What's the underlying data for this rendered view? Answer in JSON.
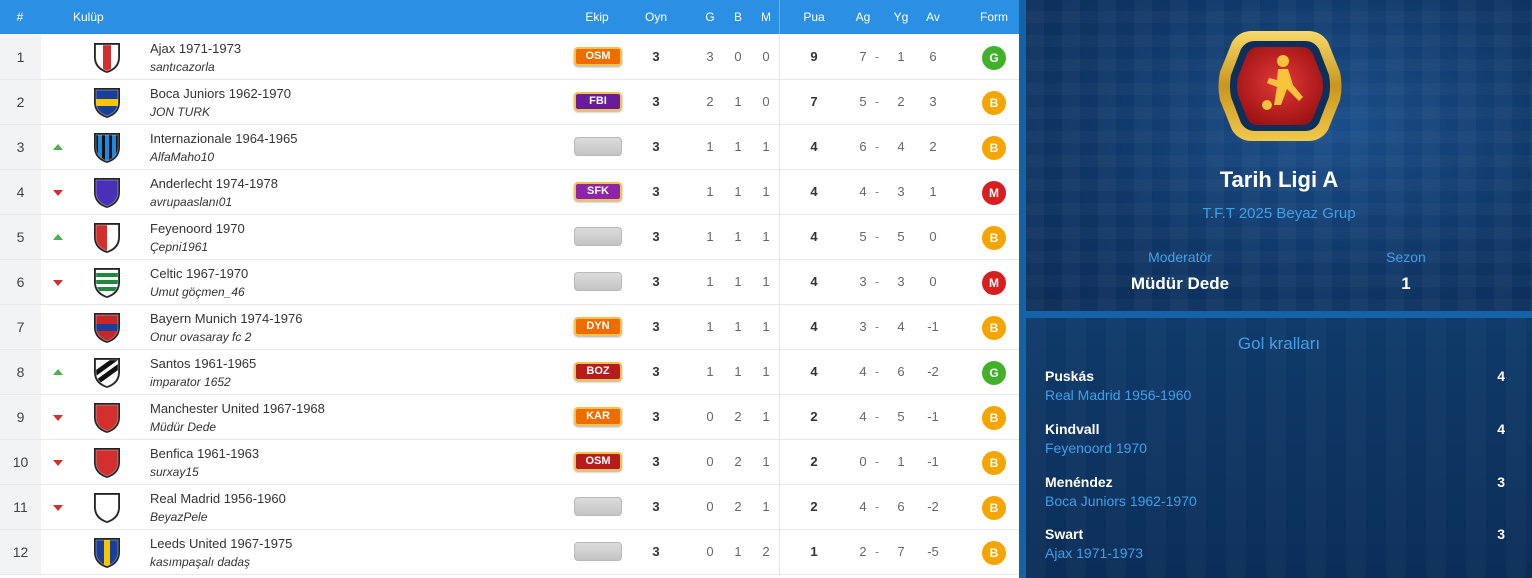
{
  "table": {
    "headers": {
      "rank": "#",
      "club": "Kulüp",
      "team": "Ekip",
      "played": "Oyn",
      "won": "G",
      "drawn": "B",
      "lost": "M",
      "points": "Pua",
      "goals_for": "Ag",
      "goals_against": "Yg",
      "goal_diff": "Av",
      "form": "Form"
    },
    "score_separator": "-",
    "rows": [
      {
        "rank": "1",
        "trend": "none",
        "crest": {
          "c1": "#d32f2f",
          "c2": "#ffffff",
          "style": "center"
        },
        "team": "Ajax 1971-1973",
        "manager": "santıcazorla",
        "ekip": {
          "label": "OSM",
          "color": "#ef6c00"
        },
        "played": "3",
        "won": "3",
        "drawn": "0",
        "lost": "0",
        "points": "9",
        "gf": "7",
        "ga": "1",
        "gd": "6",
        "form": {
          "label": "G",
          "color": "#43b02a"
        }
      },
      {
        "rank": "2",
        "trend": "none",
        "crest": {
          "c1": "#1a3f9a",
          "c2": "#f7c600",
          "style": "band"
        },
        "team": "Boca Juniors 1962-1970",
        "manager": "JON TURK",
        "ekip": {
          "label": "FBI",
          "color": "#6a1b9a"
        },
        "played": "3",
        "won": "2",
        "drawn": "1",
        "lost": "0",
        "points": "7",
        "gf": "5",
        "ga": "2",
        "gd": "3",
        "form": {
          "label": "B",
          "color": "#f5a400"
        }
      },
      {
        "rank": "3",
        "trend": "up",
        "crest": {
          "c1": "#1e88e5",
          "c2": "#111111",
          "style": "stripes"
        },
        "team": "Internazionale 1964-1965",
        "manager": "AlfaMaho10",
        "ekip": {
          "label": "",
          "color": ""
        },
        "played": "3",
        "won": "1",
        "drawn": "1",
        "lost": "1",
        "points": "4",
        "gf": "6",
        "ga": "4",
        "gd": "2",
        "form": {
          "label": "B",
          "color": "#f5a400"
        }
      },
      {
        "rank": "4",
        "trend": "down",
        "crest": {
          "c1": "#4a2fb8",
          "c2": "#4a2fb8",
          "style": "solid"
        },
        "team": "Anderlecht 1974-1978",
        "manager": "avrupaaslanı01",
        "ekip": {
          "label": "SFK",
          "color": "#8e24aa"
        },
        "played": "3",
        "won": "1",
        "drawn": "1",
        "lost": "1",
        "points": "4",
        "gf": "4",
        "ga": "3",
        "gd": "1",
        "form": {
          "label": "M",
          "color": "#d81e1e"
        }
      },
      {
        "rank": "5",
        "trend": "up",
        "crest": {
          "c1": "#d32f2f",
          "c2": "#ffffff",
          "style": "half"
        },
        "team": "Feyenoord 1970",
        "manager": "Çepni1961",
        "ekip": {
          "label": "",
          "color": ""
        },
        "played": "3",
        "won": "1",
        "drawn": "1",
        "lost": "1",
        "points": "4",
        "gf": "5",
        "ga": "5",
        "gd": "0",
        "form": {
          "label": "B",
          "color": "#f5a400"
        }
      },
      {
        "rank": "6",
        "trend": "down",
        "crest": {
          "c1": "#1b8a3c",
          "c2": "#ffffff",
          "style": "hoops"
        },
        "team": "Celtic 1967-1970",
        "manager": "Umut göçmen_46",
        "ekip": {
          "label": "",
          "color": ""
        },
        "played": "3",
        "won": "1",
        "drawn": "1",
        "lost": "1",
        "points": "4",
        "gf": "3",
        "ga": "3",
        "gd": "0",
        "form": {
          "label": "M",
          "color": "#d81e1e"
        }
      },
      {
        "rank": "7",
        "trend": "none",
        "crest": {
          "c1": "#c62828",
          "c2": "#1a3f9a",
          "style": "band"
        },
        "team": "Bayern Munich 1974-1976",
        "manager": "Onur ovasaray fc 2",
        "ekip": {
          "label": "DYN",
          "color": "#ef6c00"
        },
        "played": "3",
        "won": "1",
        "drawn": "1",
        "lost": "1",
        "points": "4",
        "gf": "3",
        "ga": "4",
        "gd": "-1",
        "form": {
          "label": "B",
          "color": "#f5a400"
        }
      },
      {
        "rank": "8",
        "trend": "up",
        "crest": {
          "c1": "#ffffff",
          "c2": "#111111",
          "style": "diag"
        },
        "team": "Santos 1961-1965",
        "manager": "imparator 1652",
        "ekip": {
          "label": "BOZ",
          "color": "#b71c1c"
        },
        "played": "3",
        "won": "1",
        "drawn": "1",
        "lost": "1",
        "points": "4",
        "gf": "4",
        "ga": "6",
        "gd": "-2",
        "form": {
          "label": "G",
          "color": "#43b02a"
        }
      },
      {
        "rank": "9",
        "trend": "down",
        "crest": {
          "c1": "#d32f2f",
          "c2": "#d32f2f",
          "style": "solid"
        },
        "team": "Manchester United 1967-1968",
        "manager": "Müdür Dede",
        "ekip": {
          "label": "KAR",
          "color": "#ef6c00"
        },
        "played": "3",
        "won": "0",
        "drawn": "2",
        "lost": "1",
        "points": "2",
        "gf": "4",
        "ga": "5",
        "gd": "-1",
        "form": {
          "label": "B",
          "color": "#f5a400"
        }
      },
      {
        "rank": "10",
        "trend": "down",
        "crest": {
          "c1": "#d32f2f",
          "c2": "#d32f2f",
          "style": "solid"
        },
        "team": "Benfica 1961-1963",
        "manager": "surxay15",
        "ekip": {
          "label": "OSM",
          "color": "#b71c1c"
        },
        "played": "3",
        "won": "0",
        "drawn": "2",
        "lost": "1",
        "points": "2",
        "gf": "0",
        "ga": "1",
        "gd": "-1",
        "form": {
          "label": "B",
          "color": "#f5a400"
        }
      },
      {
        "rank": "11",
        "trend": "down",
        "crest": {
          "c1": "#ffffff",
          "c2": "#ffffff",
          "style": "solid"
        },
        "team": "Real Madrid 1956-1960",
        "manager": "BeyazPele",
        "ekip": {
          "label": "",
          "color": ""
        },
        "played": "3",
        "won": "0",
        "drawn": "2",
        "lost": "1",
        "points": "2",
        "gf": "4",
        "ga": "6",
        "gd": "-2",
        "form": {
          "label": "B",
          "color": "#f5a400"
        }
      },
      {
        "rank": "12",
        "trend": "none",
        "crest": {
          "c1": "#1a3f9a",
          "c2": "#f7c600",
          "style": "vstripe"
        },
        "team": "Leeds United 1967-1975",
        "manager": "kasımpaşalı dadaş",
        "ekip": {
          "label": "",
          "color": ""
        },
        "played": "3",
        "won": "0",
        "drawn": "1",
        "lost": "2",
        "points": "1",
        "gf": "2",
        "ga": "7",
        "gd": "-5",
        "form": {
          "label": "B",
          "color": "#f5a400"
        }
      }
    ]
  },
  "league": {
    "title": "Tarih Ligi A",
    "subtitle": "T.F.T 2025 Beyaz Grup",
    "moderator_label": "Moderatör",
    "moderator": "Müdür Dede",
    "season_label": "Sezon",
    "season": "1",
    "logo_icon": "soccer-player-icon"
  },
  "scorers": {
    "title": "Gol kralları",
    "items": [
      {
        "name": "Puskás",
        "team": "Real Madrid 1956-1960",
        "goals": "4"
      },
      {
        "name": "Kindvall",
        "team": "Feyenoord 1970",
        "goals": "4"
      },
      {
        "name": "Menéndez",
        "team": "Boca Juniors 1962-1970",
        "goals": "3"
      },
      {
        "name": "Swart",
        "team": "Ajax 1971-1973",
        "goals": "3"
      }
    ]
  }
}
